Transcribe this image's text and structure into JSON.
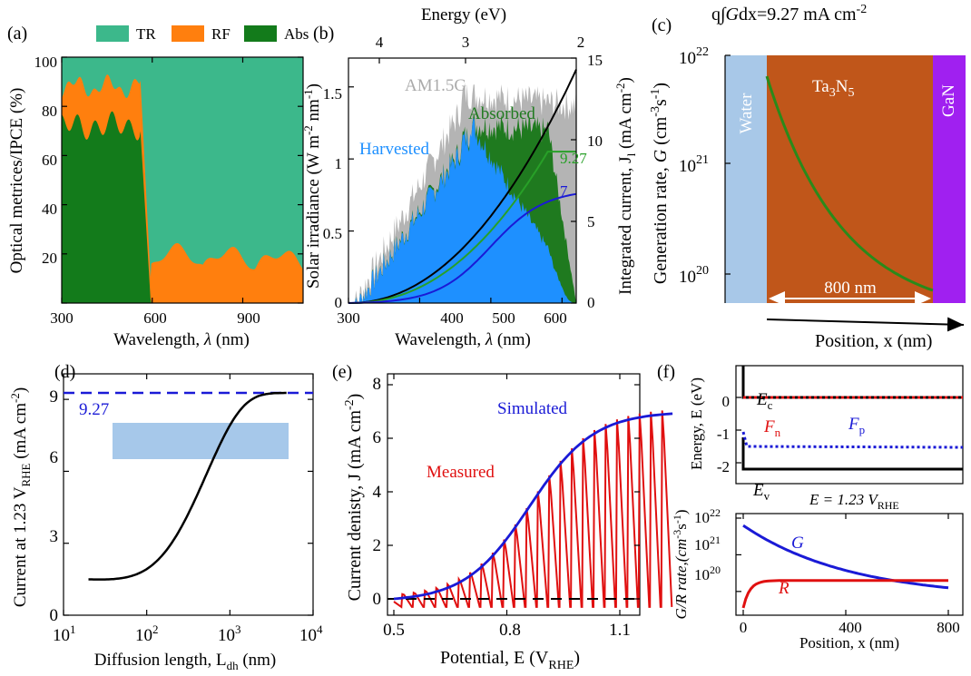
{
  "panels": {
    "a": {
      "label": "(a)",
      "legend": [
        "TR",
        "RF",
        "Abs"
      ],
      "colors": {
        "TR": "#3cb88b",
        "RF": "#ff7f0e",
        "Abs": "#137b1b"
      },
      "xticks": [
        "300",
        "600",
        "900"
      ],
      "yticks": [
        "20",
        "40",
        "60",
        "80",
        "100"
      ],
      "xlabel_pre": "Wavelength, ",
      "xlabel_sym": "λ",
      "xlabel_post": " (nm)",
      "ylabel": "Optical metrices/IPCE (%)"
    },
    "b": {
      "label": "(b)",
      "top_axis_title": "Energy (eV)",
      "top_ticks": [
        "4",
        "3",
        "2"
      ],
      "xticks": [
        "300",
        "400",
        "500",
        "600"
      ],
      "yticks_left": [
        "0",
        "0.5",
        "1",
        "1.5"
      ],
      "yticks_right": [
        "0",
        "5",
        "10",
        "15"
      ],
      "xlabel_pre": "Wavelength, ",
      "xlabel_sym": "λ",
      "xlabel_post": " (nm)",
      "ylabel_left": "Solar irradiance (W m",
      "ylabel_left_sup1": "-2",
      "ylabel_left_mid": " nm",
      "ylabel_left_sup2": "-1",
      "ylabel_left_end": ")",
      "ylabel_right": "Integrated current, J",
      "ylabel_right_sub": "l",
      "ylabel_right_end": " (mA cm",
      "ylabel_right_sup": "-2",
      "ylabel_right_close": ")",
      "label_am": "AM1.5G",
      "label_absorbed": "Absorbed",
      "label_harvested": "Harvested",
      "val_927": "9.27",
      "val_7": "7",
      "colors": {
        "am": "#b4b4b4",
        "absorbed": "#1f7a1f",
        "harvested": "#1e90ff",
        "green_line": "#28a028",
        "blue_line": "#1a1ad6"
      }
    },
    "c": {
      "label": "(c)",
      "title_pre": "q∫",
      "title_G": "G",
      "title_dx": "dx=9.27 mA cm",
      "title_sup": "-2",
      "region_water": "Water",
      "region_ta3n5_main": "Ta",
      "region_ta3n5_sub1": "3",
      "region_ta3n5_mid": "N",
      "region_ta3n5_sub2": "5",
      "region_gan": "GaN",
      "arrow_label": "800 nm",
      "yticks": [
        "10",
        "10",
        "10"
      ],
      "yexp": [
        "20",
        "21",
        "22"
      ],
      "xlabel": "Position, x (nm)",
      "ylabel_pre": "Generation rate, ",
      "ylabel_G": "G",
      "ylabel_post": " (cm",
      "ylabel_sup": "-3",
      "ylabel_s": "s",
      "ylabel_sup2": "-1",
      "ylabel_close": ")",
      "colors": {
        "water": "#a8c8e8",
        "ta3n5": "#c0561a",
        "gan": "#a020f0",
        "curve": "#2a8a1a"
      }
    },
    "d": {
      "label": "(d)",
      "val_927": "9.27",
      "xticks_base": [
        "10",
        "10",
        "10",
        "10"
      ],
      "xticks_exp": [
        "1",
        "2",
        "3",
        "4"
      ],
      "yticks": [
        "0",
        "3",
        "6",
        "9"
      ],
      "xlabel": "Diffusion length, L",
      "xlabel_sub": "dh",
      "xlabel_post": " (nm)",
      "ylabel": "Current at 1.23 V",
      "ylabel_sub": "RHE",
      "ylabel_post": " (mA cm",
      "ylabel_sup": "-2",
      "ylabel_close": ")",
      "colors": {
        "dash": "#1a1ad6",
        "box": "#a6c8ea"
      }
    },
    "e": {
      "label": "(e)",
      "label_sim": "Simulated",
      "label_meas": "Measured",
      "xticks": [
        "0.5",
        "0.8",
        "1.1"
      ],
      "yticks": [
        "0",
        "2",
        "4",
        "6",
        "8"
      ],
      "xlabel": "Potential, E (V",
      "xlabel_sub": "RHE",
      "xlabel_close": ")",
      "ylabel": "Current denisty, J (mA cm",
      "ylabel_sup": "-2",
      "ylabel_close": ")",
      "colors": {
        "sim": "#1a1ad6",
        "meas": "#e01010"
      }
    },
    "f": {
      "label": "(f)",
      "Ec": "E",
      "Ec_sub": "c",
      "Ev": "E",
      "Ev_sub": "v",
      "Fn": "F",
      "Fn_sub": "n",
      "Fp": "F",
      "Fp_sub": "p",
      "E_label": "E = 1.23 V",
      "E_label_sub": "RHE",
      "G": "G",
      "R": "R",
      "top_yticks": [
        "0",
        "-1",
        "-2"
      ],
      "top_ylabel": "Energy, E (eV)",
      "bot_yticks_base": [
        "10",
        "10",
        "10"
      ],
      "bot_yticks_exp": [
        "20",
        "21",
        "22"
      ],
      "bot_ylabel": "G/R rate,(cm",
      "bot_ylabel_sup": "-3",
      "bot_ylabel_s": "s",
      "bot_ylabel_sup2": "-1",
      "bot_ylabel_close": ")",
      "xticks": [
        "0",
        "400",
        "800"
      ],
      "xlabel": "Position, x (nm)",
      "colors": {
        "Fn": "#e01010",
        "Fp": "#1a1ad6",
        "G": "#1a1ad6",
        "R": "#e01010"
      }
    }
  }
}
